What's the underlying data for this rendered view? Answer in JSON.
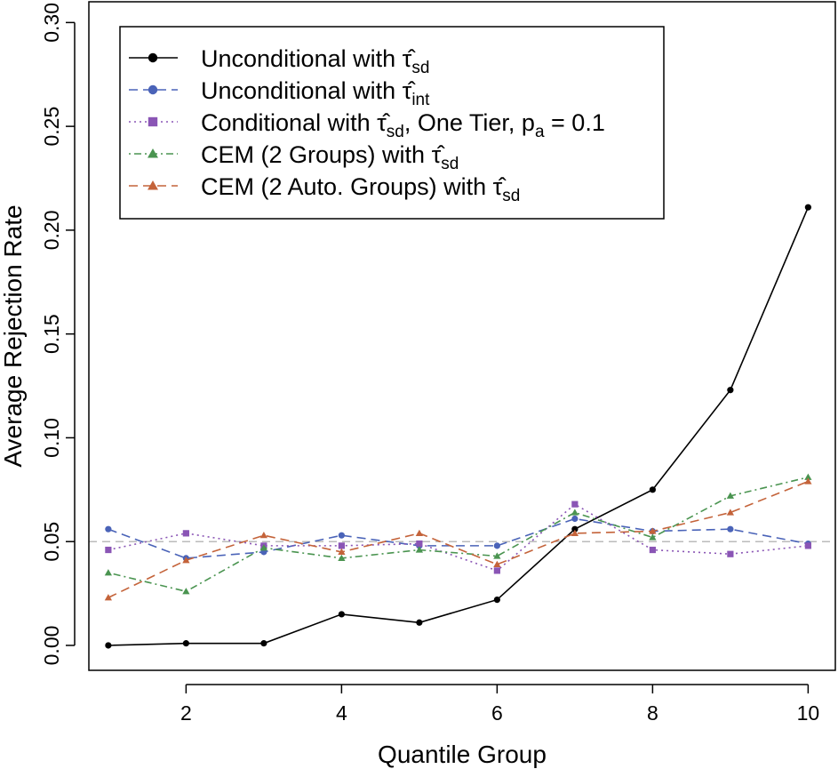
{
  "chart_data": {
    "type": "line",
    "xlabel": "Quantile Group",
    "ylabel": "Average Rejection Rate",
    "xlim": [
      0.75,
      10.35
    ],
    "ylim": [
      -0.012,
      0.31
    ],
    "xticks": [
      2,
      4,
      6,
      8,
      10
    ],
    "yticks": [
      0.0,
      0.05,
      0.1,
      0.15,
      0.2,
      0.25,
      0.3
    ],
    "ytick_labels": [
      "0.00",
      "0.05",
      "0.10",
      "0.15",
      "0.20",
      "0.25",
      "0.30"
    ],
    "xtick_labels": [
      "2",
      "4",
      "6",
      "8",
      "10"
    ],
    "reference_line": {
      "y": 0.05,
      "color": "#bbbbbb",
      "style": "dashed"
    },
    "legend_position": "top-left",
    "x": [
      1,
      2,
      3,
      4,
      5,
      6,
      7,
      8,
      9,
      10
    ],
    "series": [
      {
        "name": "Unconditional with τ̂sd",
        "legend_main": "Unconditional with ",
        "legend_sub": "sd",
        "legend_suffix": "",
        "color": "#000000",
        "marker": "circle",
        "dash": "none",
        "values": [
          0.0,
          0.001,
          0.001,
          0.015,
          0.011,
          0.022,
          0.056,
          0.075,
          0.123,
          0.211
        ]
      },
      {
        "name": "Unconditional with τ̂int",
        "legend_main": "Unconditional with ",
        "legend_sub": "int",
        "legend_suffix": "",
        "color": "#4a63b8",
        "marker": "circle",
        "dash": "longdash",
        "values": [
          0.056,
          0.042,
          0.045,
          0.053,
          0.048,
          0.048,
          0.061,
          0.055,
          0.056,
          0.049
        ]
      },
      {
        "name": "Conditional with τ̂sd, One Tier, pa = 0.1",
        "legend_main": "Conditional with ",
        "legend_sub": "sd",
        "legend_suffix": ", One Tier, p",
        "legend_suffix_sub": "a",
        "legend_suffix_end": " = 0.1",
        "color": "#8a55b5",
        "marker": "square",
        "dash": "dotted",
        "values": [
          0.046,
          0.054,
          0.048,
          0.048,
          0.049,
          0.036,
          0.068,
          0.046,
          0.044,
          0.048
        ]
      },
      {
        "name": "CEM (2 Groups) with τ̂sd",
        "legend_main": "CEM (2 Groups) with ",
        "legend_sub": "sd",
        "legend_suffix": "",
        "color": "#4a9450",
        "marker": "triangle",
        "dash": "dotdash",
        "values": [
          0.035,
          0.026,
          0.047,
          0.042,
          0.046,
          0.043,
          0.064,
          0.052,
          0.072,
          0.081
        ]
      },
      {
        "name": "CEM (2 Auto. Groups) with τ̂sd",
        "legend_main": "CEM (2 Auto. Groups) with ",
        "legend_sub": "sd",
        "legend_suffix": "",
        "color": "#c4633a",
        "marker": "triangle",
        "dash": "longdash",
        "values": [
          0.023,
          0.041,
          0.053,
          0.045,
          0.054,
          0.039,
          0.054,
          0.055,
          0.064,
          0.079
        ]
      }
    ]
  }
}
